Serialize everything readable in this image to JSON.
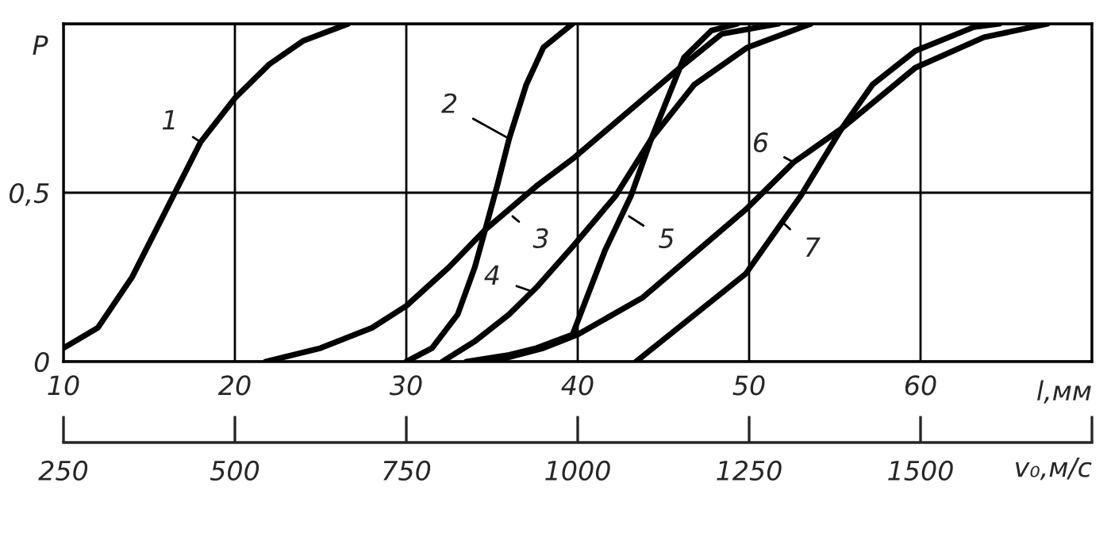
{
  "chart_data": {
    "type": "line",
    "xlabel": "l,мм",
    "ylabel": "P",
    "x2label": "v₀,м/с",
    "xlim": [
      10,
      70
    ],
    "xticks": [
      10,
      20,
      30,
      40,
      50,
      60,
      {
        "value": 70,
        "label": null
      }
    ],
    "ylim": [
      0,
      1
    ],
    "yticks": [
      0,
      {
        "value": 0.5,
        "label": "0,5"
      },
      {
        "value": 1,
        "label": null
      }
    ],
    "x2lim": [
      250,
      1750
    ],
    "x2ticks": [
      250,
      500,
      750,
      1000,
      1250,
      1500,
      {
        "value": 1750,
        "label": null
      }
    ],
    "grid": true,
    "legend": false,
    "marker": "none",
    "line_style": "solid",
    "series": [
      {
        "color": "#000000",
        "x": [
          10,
          12,
          14,
          16,
          18,
          20,
          22,
          24,
          26.6
        ],
        "values": [
          0.04,
          0.1,
          0.25,
          0.45,
          0.65,
          0.78,
          0.88,
          0.95,
          1
        ]
      },
      {
        "color": "#000000",
        "x": [
          30,
          31.5,
          33,
          34,
          34.6,
          35.3,
          36,
          37,
          38,
          39.7
        ],
        "values": [
          0,
          0.04,
          0.14,
          0.28,
          0.39,
          0.52,
          0.66,
          0.82,
          0.93,
          1
        ]
      },
      {
        "color": "#000000",
        "x": [
          21.8,
          25,
          28,
          30,
          32.5,
          34.6,
          37.6,
          39.7,
          46.2,
          48.4,
          51.7
        ],
        "values": [
          0,
          0.04,
          0.1,
          0.165,
          0.28,
          0.39,
          0.52,
          0.6,
          0.88,
          0.97,
          1
        ]
      },
      {
        "color": "#000000",
        "x": [
          32.1,
          34,
          36,
          37.6,
          39.7,
          42.2,
          44.3,
          46.8,
          49.9,
          53.6
        ],
        "values": [
          0,
          0.06,
          0.14,
          0.22,
          0.34,
          0.49,
          0.66,
          0.82,
          0.93,
          1
        ]
      },
      {
        "color": "#000000",
        "x": [
          33.5,
          36,
          37.6,
          39.7,
          41.6,
          43.1,
          44.3,
          46.2,
          47.8,
          49.3
        ],
        "values": [
          0,
          0.02,
          0.04,
          0.08,
          0.33,
          0.49,
          0.66,
          0.9,
          0.98,
          1
        ]
      },
      {
        "color": "#000000",
        "x": [
          35,
          38,
          40,
          43.8,
          49.8,
          52.6,
          55.4,
          59.7,
          63.7,
          67.4
        ],
        "values": [
          0,
          0.04,
          0.08,
          0.19,
          0.45,
          0.59,
          0.69,
          0.87,
          0.96,
          1
        ]
      },
      {
        "color": "#000000",
        "x": [
          43.4,
          49.8,
          53,
          55.4,
          57.2,
          59.7,
          63.1,
          64.6
        ],
        "values": [
          0,
          0.26,
          0.49,
          0.69,
          0.82,
          0.92,
          0.99,
          1
        ]
      }
    ],
    "annotations": [
      {
        "text": "1",
        "x": 18,
        "y": 0.65
      },
      {
        "text": "2",
        "x": 36,
        "y": 0.66
      },
      {
        "text": "3",
        "x": 36.2,
        "y": 0.43
      },
      {
        "text": "4",
        "x": 37.2,
        "y": 0.21
      },
      {
        "text": "5",
        "x": 43,
        "y": 0.43
      },
      {
        "text": "6",
        "x": 52.6,
        "y": 0.59
      },
      {
        "text": "7",
        "x": 52,
        "y": 0.41
      }
    ]
  }
}
